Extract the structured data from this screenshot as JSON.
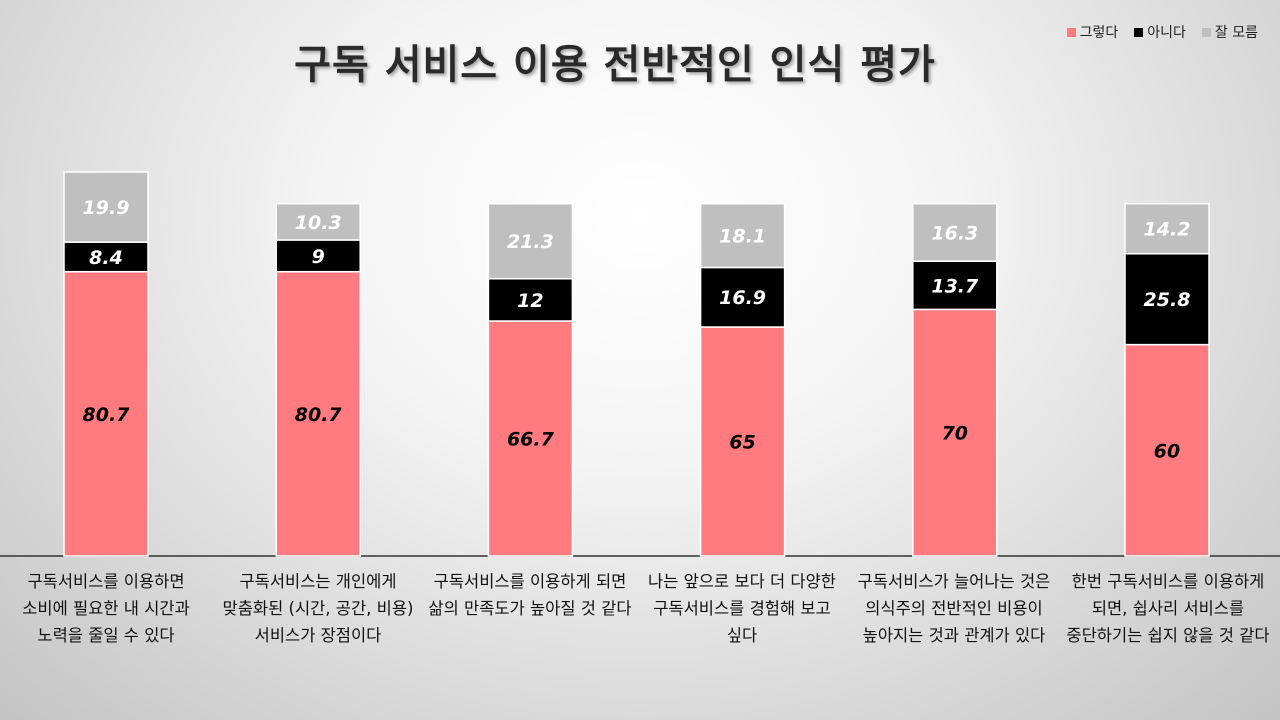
{
  "chart_data": {
    "type": "bar",
    "stacked": true,
    "title": "구독 서비스 이용 전반적인 인식 평가",
    "categories": [
      "구독서비스를 이용하면\n소비에 필요한 내 시간과\n노력을 줄일 수 있다",
      "구독서비스는 개인에게\n맞춤화된 (시간, 공간, 비용)\n서비스가 장점이다",
      "구독서비스를 이용하게 되면\n삶의 만족도가 높아질 것 같다",
      "나는 앞으로 보다 더 다양한\n구독서비스를 경험해 보고\n싶다",
      "구독서비스가 늘어나는 것은\n의식주의 전반적인 비용이\n높아지는 것과 관계가 있다",
      "한번 구독서비스를 이용하게\n되면, 쉽사리 서비스를\n중단하기는 쉽지 않을 것 같다"
    ],
    "series": [
      {
        "name": "그렇다",
        "color": "#FF7B7F",
        "values": [
          80.7,
          80.7,
          66.7,
          65,
          70,
          60
        ]
      },
      {
        "name": "아니다",
        "color": "#000000",
        "values": [
          8.4,
          9,
          12,
          16.9,
          13.7,
          25.8
        ]
      },
      {
        "name": "잘 모름",
        "color": "#BFBFBF",
        "values": [
          19.9,
          10.3,
          21.3,
          18.1,
          16.3,
          14.2
        ]
      }
    ],
    "data_labels": true,
    "legend_position": "top-right"
  }
}
